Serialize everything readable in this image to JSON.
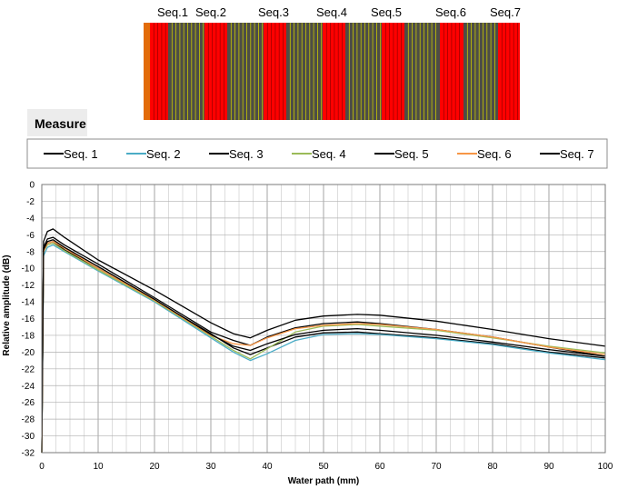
{
  "probe": {
    "labels": [
      "Seq.1",
      "Seq.2",
      "Seq.3",
      "Seq.4",
      "Seq.5",
      "Seq.6",
      "Seq.7"
    ]
  },
  "measure_label": "Measure",
  "chart_data": {
    "type": "line",
    "title": "",
    "xlabel": "Water path (mm)",
    "ylabel": "Relative amplitude (dB)",
    "xlim": [
      0,
      100
    ],
    "ylim": [
      -32,
      0
    ],
    "xticks": [
      0,
      10,
      20,
      30,
      40,
      50,
      60,
      70,
      80,
      90,
      100
    ],
    "yticks": [
      0,
      -2,
      -4,
      -6,
      -8,
      -10,
      -12,
      -14,
      -16,
      -18,
      -20,
      -22,
      -24,
      -26,
      -28,
      -30,
      -32
    ],
    "grid": true,
    "legend_position": "top",
    "series": [
      {
        "name": "Seq. 1",
        "color": "#000000",
        "points": [
          [
            0,
            -32
          ],
          [
            0.3,
            -8
          ],
          [
            1,
            -7
          ],
          [
            2,
            -6.8
          ],
          [
            4,
            -7.8
          ],
          [
            10,
            -10
          ],
          [
            20,
            -13.8
          ],
          [
            30,
            -17.8
          ],
          [
            34,
            -19.5
          ],
          [
            37,
            -20.3
          ],
          [
            40,
            -19.5
          ],
          [
            45,
            -18.2
          ],
          [
            50,
            -17.7
          ],
          [
            56,
            -17.6
          ],
          [
            60,
            -17.8
          ],
          [
            70,
            -18.3
          ],
          [
            80,
            -19
          ],
          [
            90,
            -20
          ],
          [
            100,
            -20.7
          ]
        ]
      },
      {
        "name": "Seq. 2",
        "color": "#4bacc6",
        "points": [
          [
            0,
            -32
          ],
          [
            0.3,
            -8.5
          ],
          [
            1,
            -7.5
          ],
          [
            2,
            -7.2
          ],
          [
            4,
            -8
          ],
          [
            10,
            -10.3
          ],
          [
            20,
            -14
          ],
          [
            30,
            -18.3
          ],
          [
            34,
            -20
          ],
          [
            37,
            -21
          ],
          [
            40,
            -20.2
          ],
          [
            45,
            -18.6
          ],
          [
            50,
            -17.9
          ],
          [
            56,
            -17.8
          ],
          [
            60,
            -17.9
          ],
          [
            70,
            -18.4
          ],
          [
            80,
            -19.1
          ],
          [
            90,
            -20.1
          ],
          [
            100,
            -20.9
          ]
        ]
      },
      {
        "name": "Seq. 3",
        "color": "#000000",
        "points": [
          [
            0,
            -32
          ],
          [
            0.3,
            -7.5
          ],
          [
            1,
            -6.5
          ],
          [
            2,
            -6.3
          ],
          [
            4,
            -7.2
          ],
          [
            10,
            -9.5
          ],
          [
            20,
            -13.5
          ],
          [
            30,
            -17.6
          ],
          [
            34,
            -18.6
          ],
          [
            37,
            -19.2
          ],
          [
            40,
            -18.2
          ],
          [
            45,
            -17.1
          ],
          [
            50,
            -16.6
          ],
          [
            56,
            -16.4
          ],
          [
            60,
            -16.6
          ],
          [
            70,
            -17.3
          ],
          [
            80,
            -18.2
          ],
          [
            90,
            -19.4
          ],
          [
            100,
            -20.5
          ]
        ]
      },
      {
        "name": "Seq. 4",
        "color": "#9bbb59",
        "points": [
          [
            0,
            -32
          ],
          [
            0.3,
            -8
          ],
          [
            1,
            -7.2
          ],
          [
            2,
            -7
          ],
          [
            4,
            -7.9
          ],
          [
            10,
            -10.2
          ],
          [
            20,
            -13.9
          ],
          [
            30,
            -18.1
          ],
          [
            34,
            -19.8
          ],
          [
            37,
            -20.8
          ],
          [
            40,
            -19.6
          ],
          [
            45,
            -17.6
          ],
          [
            50,
            -16.9
          ],
          [
            56,
            -16.7
          ],
          [
            60,
            -16.9
          ],
          [
            70,
            -17.4
          ],
          [
            80,
            -18.3
          ],
          [
            90,
            -19.3
          ],
          [
            100,
            -20.1
          ]
        ]
      },
      {
        "name": "Seq. 5",
        "color": "#000000",
        "points": [
          [
            0,
            -32
          ],
          [
            0.3,
            -6.8
          ],
          [
            1,
            -5.6
          ],
          [
            2,
            -5.3
          ],
          [
            4,
            -6.3
          ],
          [
            10,
            -9
          ],
          [
            20,
            -12.6
          ],
          [
            30,
            -16.5
          ],
          [
            34,
            -17.8
          ],
          [
            37,
            -18.3
          ],
          [
            40,
            -17.4
          ],
          [
            45,
            -16.2
          ],
          [
            50,
            -15.7
          ],
          [
            56,
            -15.5
          ],
          [
            60,
            -15.6
          ],
          [
            70,
            -16.3
          ],
          [
            80,
            -17.3
          ],
          [
            90,
            -18.4
          ],
          [
            100,
            -19.3
          ]
        ]
      },
      {
        "name": "Seq. 6",
        "color": "#f79646",
        "points": [
          [
            0,
            -32
          ],
          [
            0.3,
            -8
          ],
          [
            1,
            -7
          ],
          [
            2,
            -6.8
          ],
          [
            4,
            -7.6
          ],
          [
            10,
            -10
          ],
          [
            20,
            -13.8
          ],
          [
            30,
            -18
          ],
          [
            34,
            -19
          ],
          [
            37,
            -19.2
          ],
          [
            40,
            -18.3
          ],
          [
            45,
            -17.2
          ],
          [
            50,
            -16.8
          ],
          [
            56,
            -16.6
          ],
          [
            60,
            -16.7
          ],
          [
            70,
            -17.3
          ],
          [
            80,
            -18.2
          ],
          [
            90,
            -19.4
          ],
          [
            100,
            -20.3
          ]
        ]
      },
      {
        "name": "Seq. 7",
        "color": "#000000",
        "points": [
          [
            0,
            -32
          ],
          [
            0.3,
            -7.8
          ],
          [
            1,
            -6.8
          ],
          [
            2,
            -6.6
          ],
          [
            4,
            -7.5
          ],
          [
            10,
            -9.8
          ],
          [
            20,
            -13.7
          ],
          [
            30,
            -17.9
          ],
          [
            34,
            -19.3
          ],
          [
            37,
            -19.8
          ],
          [
            40,
            -19
          ],
          [
            45,
            -17.9
          ],
          [
            50,
            -17.4
          ],
          [
            56,
            -17.2
          ],
          [
            60,
            -17.4
          ],
          [
            70,
            -18
          ],
          [
            80,
            -18.8
          ],
          [
            90,
            -19.7
          ],
          [
            100,
            -20.5
          ]
        ]
      }
    ]
  }
}
